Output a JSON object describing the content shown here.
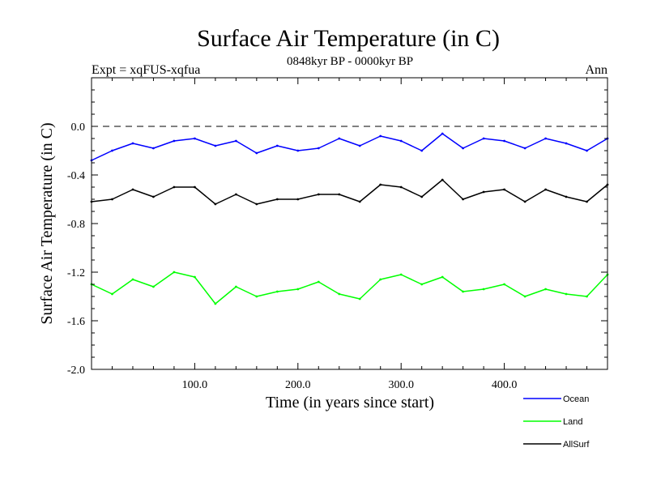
{
  "chart_data": {
    "type": "line",
    "title": "Surface Air Temperature (in C)",
    "subtitle": "0848kyr BP - 0000kyr BP",
    "left_label": "Expt = xqFUS-xqfua",
    "right_label": "Ann",
    "xlabel": "Time (in years since start)",
    "ylabel": "Surface Air Temperature (in C)",
    "xlim": [
      0,
      500
    ],
    "ylim": [
      -2.0,
      0.4
    ],
    "x_ticks": [
      {
        "value": 100,
        "label": "100.0"
      },
      {
        "value": 200,
        "label": "200.0"
      },
      {
        "value": 300,
        "label": "300.0"
      },
      {
        "value": 400,
        "label": "400.0"
      }
    ],
    "y_ticks": [
      {
        "value": 0.0,
        "label": "0.0"
      },
      {
        "value": -0.4,
        "label": "-0.4"
      },
      {
        "value": -0.8,
        "label": "-0.8"
      },
      {
        "value": -1.2,
        "label": "-1.2"
      },
      {
        "value": -1.6,
        "label": "-1.6"
      },
      {
        "value": -2.0,
        "label": "-2.0"
      }
    ],
    "reference_line": {
      "y": 0.0,
      "style": "dashed"
    },
    "legend_position": "bottom-right",
    "x": [
      0,
      20,
      40,
      60,
      80,
      100,
      120,
      140,
      160,
      180,
      200,
      220,
      240,
      260,
      280,
      300,
      320,
      340,
      360,
      380,
      400,
      420,
      440,
      460,
      480,
      500
    ],
    "series": [
      {
        "name": "Ocean",
        "color": "#0000ff",
        "values": [
          -0.28,
          -0.2,
          -0.14,
          -0.18,
          -0.12,
          -0.1,
          -0.16,
          -0.12,
          -0.22,
          -0.16,
          -0.2,
          -0.18,
          -0.1,
          -0.16,
          -0.08,
          -0.12,
          -0.2,
          -0.06,
          -0.18,
          -0.1,
          -0.12,
          -0.18,
          -0.1,
          -0.14,
          -0.2,
          -0.1
        ]
      },
      {
        "name": "Land",
        "color": "#00ff00",
        "values": [
          -1.3,
          -1.38,
          -1.26,
          -1.32,
          -1.2,
          -1.24,
          -1.46,
          -1.32,
          -1.4,
          -1.36,
          -1.34,
          -1.28,
          -1.38,
          -1.42,
          -1.26,
          -1.22,
          -1.3,
          -1.24,
          -1.36,
          -1.34,
          -1.3,
          -1.4,
          -1.34,
          -1.38,
          -1.4,
          -1.22
        ]
      },
      {
        "name": "AllSurf",
        "color": "#000000",
        "values": [
          -0.62,
          -0.6,
          -0.52,
          -0.58,
          -0.5,
          -0.5,
          -0.64,
          -0.56,
          -0.64,
          -0.6,
          -0.6,
          -0.56,
          -0.56,
          -0.62,
          -0.48,
          -0.5,
          -0.58,
          -0.44,
          -0.6,
          -0.54,
          -0.52,
          -0.62,
          -0.52,
          -0.58,
          -0.62,
          -0.48
        ]
      }
    ]
  }
}
